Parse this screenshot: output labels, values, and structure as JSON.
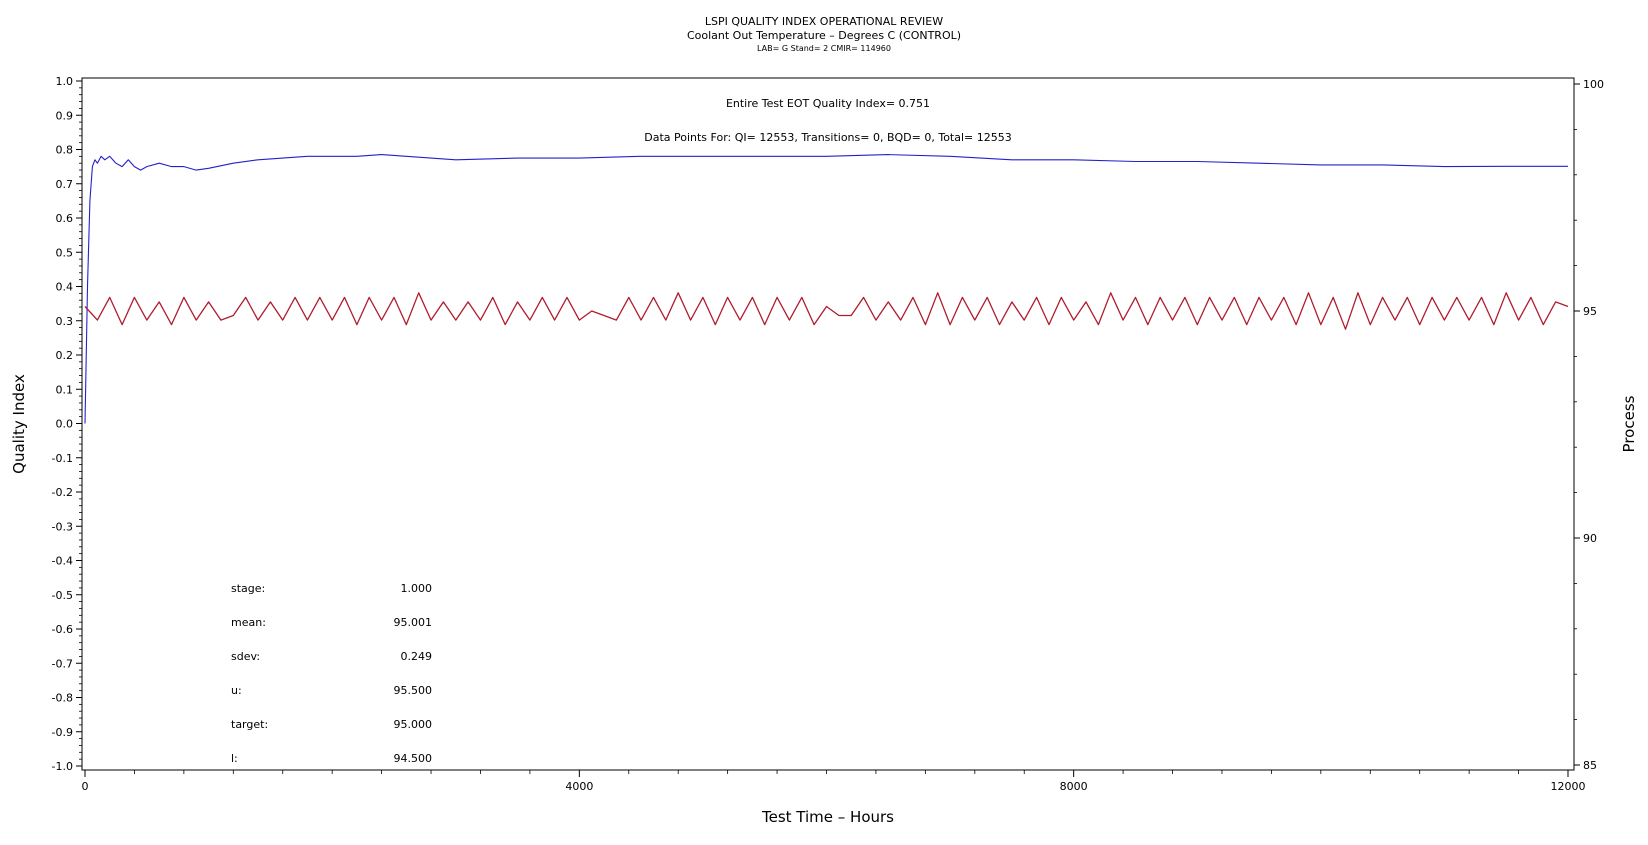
{
  "chart_data": {
    "type": "line",
    "title": "LSPI QUALITY INDEX OPERATIONAL REVIEW",
    "subtitle": "Coolant Out Temperature – Degrees C (CONTROL)",
    "subtitle2": "LAB= G Stand= 2 CMIR= 114960",
    "summary_line": "Entire Test EOT Quality Index=   0.751",
    "counts_line": "Data Points For: QI= 12553, Transitions=     0, BQD=     0, Total= 12553",
    "xlabel": "Test Time – Hours",
    "ylabel_left": "Quality Index",
    "ylabel_right": "Process",
    "xlim": [
      0,
      12000
    ],
    "ylim_left": [
      -1.0,
      1.0
    ],
    "ylim_right": [
      85,
      100
    ],
    "x_ticks": [
      "0",
      "4000",
      "8000",
      "12000"
    ],
    "y_left_ticks": [
      "1.0",
      "0.9",
      "0.8",
      "0.7",
      "0.6",
      "0.5",
      "0.4",
      "0.3",
      "0.2",
      "0.1",
      "0.0",
      "-0.1",
      "-0.2",
      "-0.3",
      "-0.4",
      "-0.5",
      "-0.6",
      "-0.7",
      "-0.8",
      "-0.9",
      "-1.0"
    ],
    "y_right_ticks": [
      "100",
      "95",
      "90",
      "85"
    ],
    "grid": false,
    "series": [
      {
        "axis": "left",
        "color": "#2222cc",
        "values_x": [
          0,
          20,
          40,
          60,
          80,
          100,
          130,
          160,
          200,
          250,
          300,
          350,
          400,
          450,
          500,
          600,
          700,
          800,
          900,
          1000,
          1200,
          1400,
          1600,
          1800,
          2000,
          2200,
          2400,
          2600,
          2800,
          3000,
          3500,
          4000,
          4500,
          5000,
          5500,
          6000,
          6500,
          7000,
          7500,
          8000,
          8500,
          9000,
          9500,
          10000,
          10500,
          11000,
          11500,
          12000
        ],
        "values_y": [
          0.0,
          0.4,
          0.65,
          0.75,
          0.77,
          0.76,
          0.78,
          0.77,
          0.78,
          0.76,
          0.75,
          0.77,
          0.75,
          0.74,
          0.75,
          0.76,
          0.75,
          0.75,
          0.74,
          0.745,
          0.76,
          0.77,
          0.775,
          0.78,
          0.78,
          0.78,
          0.785,
          0.78,
          0.775,
          0.77,
          0.775,
          0.775,
          0.78,
          0.78,
          0.78,
          0.78,
          0.785,
          0.78,
          0.77,
          0.77,
          0.765,
          0.765,
          0.76,
          0.755,
          0.755,
          0.75,
          0.751,
          0.751
        ]
      },
      {
        "axis": "right",
        "color": "#b01c2e",
        "values_x": [
          0,
          100,
          200,
          300,
          400,
          500,
          600,
          700,
          800,
          900,
          1000,
          1100,
          1200,
          1300,
          1400,
          1500,
          1600,
          1700,
          1800,
          1900,
          2000,
          2100,
          2200,
          2300,
          2400,
          2500,
          2600,
          2700,
          2800,
          2900,
          3000,
          3100,
          3200,
          3300,
          3400,
          3500,
          3600,
          3700,
          3800,
          3900,
          4000,
          4100,
          4200,
          4300,
          4400,
          4500,
          4600,
          4700,
          4800,
          4900,
          5000,
          5100,
          5200,
          5300,
          5400,
          5500,
          5600,
          5700,
          5800,
          5900,
          6000,
          6100,
          6200,
          6300,
          6400,
          6500,
          6600,
          6700,
          6800,
          6900,
          7000,
          7100,
          7200,
          7300,
          7400,
          7500,
          7600,
          7700,
          7800,
          7900,
          8000,
          8100,
          8200,
          8300,
          8400,
          8500,
          8600,
          8700,
          8800,
          8900,
          9000,
          9100,
          9200,
          9300,
          9400,
          9500,
          9600,
          9700,
          9800,
          9900,
          10000,
          10100,
          10200,
          10300,
          10400,
          10500,
          10600,
          10700,
          10800,
          10900,
          11000,
          11100,
          11200,
          11300,
          11400,
          11500,
          11600,
          11700,
          11800,
          11900,
          12000
        ],
        "values_y": [
          95.1,
          94.8,
          95.3,
          94.7,
          95.3,
          94.8,
          95.2,
          94.7,
          95.3,
          94.8,
          95.2,
          94.8,
          94.9,
          95.3,
          94.8,
          95.2,
          94.8,
          95.3,
          94.8,
          95.3,
          94.8,
          95.3,
          94.7,
          95.3,
          94.8,
          95.3,
          94.7,
          95.4,
          94.8,
          95.2,
          94.8,
          95.2,
          94.8,
          95.3,
          94.7,
          95.2,
          94.8,
          95.3,
          94.8,
          95.3,
          94.8,
          95.0,
          94.9,
          94.8,
          95.3,
          94.8,
          95.3,
          94.8,
          95.4,
          94.8,
          95.3,
          94.7,
          95.3,
          94.8,
          95.3,
          94.7,
          95.3,
          94.8,
          95.3,
          94.7,
          95.1,
          94.9,
          94.9,
          95.3,
          94.8,
          95.2,
          94.8,
          95.3,
          94.7,
          95.4,
          94.7,
          95.3,
          94.8,
          95.3,
          94.7,
          95.2,
          94.8,
          95.3,
          94.7,
          95.3,
          94.8,
          95.2,
          94.7,
          95.4,
          94.8,
          95.3,
          94.7,
          95.3,
          94.8,
          95.3,
          94.7,
          95.3,
          94.8,
          95.3,
          94.7,
          95.3,
          94.8,
          95.3,
          94.7,
          95.4,
          94.7,
          95.3,
          94.6,
          95.4,
          94.7,
          95.3,
          94.8,
          95.3,
          94.7,
          95.3,
          94.8,
          95.3,
          94.8,
          95.3,
          94.7,
          95.4,
          94.8,
          95.3,
          94.7,
          95.2,
          95.1
        ]
      }
    ],
    "stats": [
      {
        "label": "stage:",
        "value": "1.000"
      },
      {
        "label": "mean:",
        "value": "95.001"
      },
      {
        "label": "sdev:",
        "value": "0.249"
      },
      {
        "label": "u:",
        "value": "95.500"
      },
      {
        "label": "target:",
        "value": "95.000"
      },
      {
        "label": "l:",
        "value": "94.500"
      }
    ]
  }
}
